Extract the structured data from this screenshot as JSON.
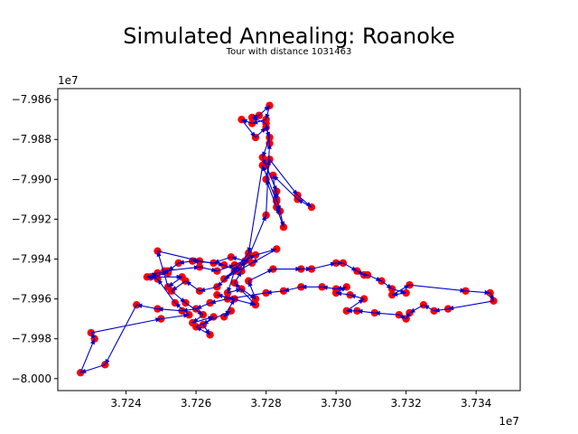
{
  "chart_data": {
    "type": "scatter",
    "title": "Simulated Annealing: Roanoke",
    "subtitle": "Tour with distance 1031463",
    "xlabel": "",
    "ylabel": "",
    "x_offset_label": "1e7",
    "y_offset_label": "1e7",
    "xlim": [
      3.72205,
      3.73526
    ],
    "ylim": [
      -8.0006,
      -7.98545
    ],
    "x_ticks": [
      3.724,
      3.726,
      3.728,
      3.73,
      3.732,
      3.734
    ],
    "x_tick_labels": [
      "3.724",
      "3.726",
      "3.728",
      "3.730",
      "3.732",
      "3.734"
    ],
    "y_ticks": [
      -7.986,
      -7.988,
      -7.99,
      -7.992,
      -7.994,
      -7.996,
      -7.998,
      -8.0
    ],
    "y_tick_labels": [
      "−7.986",
      "−7.988",
      "−7.990",
      "−7.992",
      "−7.994",
      "−7.996",
      "−7.998",
      "−8.000"
    ],
    "grid": false,
    "legend": "none",
    "point_color": "#ff0000",
    "path_color": "#0000cc",
    "tour": [
      [
        3.7251,
        -7.9946
      ],
      [
        3.7261,
        -7.9944
      ],
      [
        3.7266,
        -7.9946
      ],
      [
        3.7271,
        -7.9943
      ],
      [
        3.7277,
        -7.9938
      ],
      [
        3.7283,
        -7.9935
      ],
      [
        3.7276,
        -7.9942
      ],
      [
        3.7268,
        -7.995
      ],
      [
        3.7272,
        -7.9944
      ],
      [
        3.7266,
        -7.9954
      ],
      [
        3.7261,
        -7.9956
      ],
      [
        3.7257,
        -7.9951
      ],
      [
        3.7253,
        -7.9956
      ],
      [
        3.7257,
        -7.9962
      ],
      [
        3.7262,
        -7.9968
      ],
      [
        3.7259,
        -7.9972
      ],
      [
        3.7265,
        -7.9969
      ],
      [
        3.7262,
        -7.9973
      ],
      [
        3.7264,
        -7.9978
      ],
      [
        3.726,
        -7.9974
      ],
      [
        3.727,
        -7.9966
      ],
      [
        3.7268,
        -7.9969
      ],
      [
        3.7271,
        -7.996
      ],
      [
        3.7266,
        -7.9958
      ],
      [
        3.7277,
        -7.9963
      ],
      [
        3.7271,
        -7.9952
      ],
      [
        3.7273,
        -7.9946
      ],
      [
        3.7275,
        -7.9939
      ],
      [
        3.728,
        -7.9918
      ],
      [
        3.7281,
        -7.9882
      ],
      [
        3.728,
        -7.9872
      ],
      [
        3.7276,
        -7.9869
      ],
      [
        3.7278,
        -7.9868
      ],
      [
        3.7281,
        -7.9863
      ],
      [
        3.728,
        -7.987
      ],
      [
        3.7276,
        -7.9872
      ],
      [
        3.7273,
        -7.987
      ],
      [
        3.7277,
        -7.9879
      ],
      [
        3.728,
        -7.9874
      ],
      [
        3.7281,
        -7.9879
      ],
      [
        3.7279,
        -7.9889
      ],
      [
        3.728,
        -7.9893
      ],
      [
        3.7283,
        -7.9906
      ],
      [
        3.7283,
        -7.991
      ],
      [
        3.7284,
        -7.9916
      ],
      [
        3.7285,
        -7.9924
      ],
      [
        3.7283,
        -7.9914
      ],
      [
        3.728,
        -7.99
      ],
      [
        3.7281,
        -7.989
      ],
      [
        3.7289,
        -7.9908
      ],
      [
        3.7293,
        -7.9914
      ],
      [
        3.7289,
        -7.991
      ],
      [
        3.7282,
        -7.9898
      ],
      [
        3.7283,
        -7.9911
      ],
      [
        3.7279,
        -7.9893
      ],
      [
        3.7275,
        -7.9937
      ],
      [
        3.7271,
        -7.9946
      ],
      [
        3.7269,
        -7.9957
      ],
      [
        3.7273,
        -7.9955
      ],
      [
        3.7277,
        -7.996
      ],
      [
        3.7275,
        -7.9951
      ],
      [
        3.7282,
        -7.9945
      ],
      [
        3.729,
        -7.9945
      ],
      [
        3.7293,
        -7.9945
      ],
      [
        3.73,
        -7.9942
      ],
      [
        3.7302,
        -7.9942
      ],
      [
        3.7306,
        -7.9946
      ],
      [
        3.7308,
        -7.9948
      ],
      [
        3.7309,
        -7.9948
      ],
      [
        3.7313,
        -7.9951
      ],
      [
        3.7316,
        -7.9955
      ],
      [
        3.732,
        -7.9957
      ],
      [
        3.7316,
        -7.9958
      ],
      [
        3.7321,
        -7.9953
      ],
      [
        3.7337,
        -7.9956
      ],
      [
        3.7344,
        -7.9957
      ],
      [
        3.7345,
        -7.9961
      ],
      [
        3.7332,
        -7.9965
      ],
      [
        3.7328,
        -7.9966
      ],
      [
        3.7325,
        -7.9963
      ],
      [
        3.7321,
        -7.9967
      ],
      [
        3.732,
        -7.997
      ],
      [
        3.7318,
        -7.9968
      ],
      [
        3.7311,
        -7.9967
      ],
      [
        3.7306,
        -7.9966
      ],
      [
        3.7303,
        -7.9966
      ],
      [
        3.7308,
        -7.996
      ],
      [
        3.7304,
        -7.9958
      ],
      [
        3.73,
        -7.9957
      ],
      [
        3.7303,
        -7.9954
      ],
      [
        3.73,
        -7.9955
      ],
      [
        3.7296,
        -7.9954
      ],
      [
        3.729,
        -7.9954
      ],
      [
        3.7285,
        -7.9956
      ],
      [
        3.728,
        -7.9957
      ],
      [
        3.7269,
        -7.996
      ],
      [
        3.7264,
        -7.9962
      ],
      [
        3.726,
        -7.9965
      ],
      [
        3.7256,
        -7.9966
      ],
      [
        3.7249,
        -7.9965
      ],
      [
        3.7243,
        -7.9963
      ],
      [
        3.7234,
        -7.9993
      ],
      [
        3.7227,
        -7.9997
      ],
      [
        3.7231,
        -7.998
      ],
      [
        3.723,
        -7.9977
      ],
      [
        3.725,
        -7.997
      ],
      [
        3.7258,
        -7.9968
      ],
      [
        3.7254,
        -7.9962
      ],
      [
        3.7249,
        -7.995
      ],
      [
        3.7246,
        -7.9949
      ],
      [
        3.7249,
        -7.9947
      ],
      [
        3.7252,
        -7.9947
      ],
      [
        3.7247,
        -7.9949
      ],
      [
        3.7256,
        -7.9949
      ],
      [
        3.7252,
        -7.9954
      ],
      [
        3.7249,
        -7.9936
      ],
      [
        3.7261,
        -7.9941
      ],
      [
        3.7268,
        -7.9943
      ],
      [
        3.7272,
        -7.9946
      ],
      [
        3.7274,
        -7.9941
      ],
      [
        3.727,
        -7.9939
      ],
      [
        3.7265,
        -7.9942
      ],
      [
        3.7259,
        -7.9941
      ],
      [
        3.7255,
        -7.9942
      ],
      [
        3.7252,
        -7.9946
      ],
      [
        3.7251,
        -7.9946
      ]
    ]
  }
}
